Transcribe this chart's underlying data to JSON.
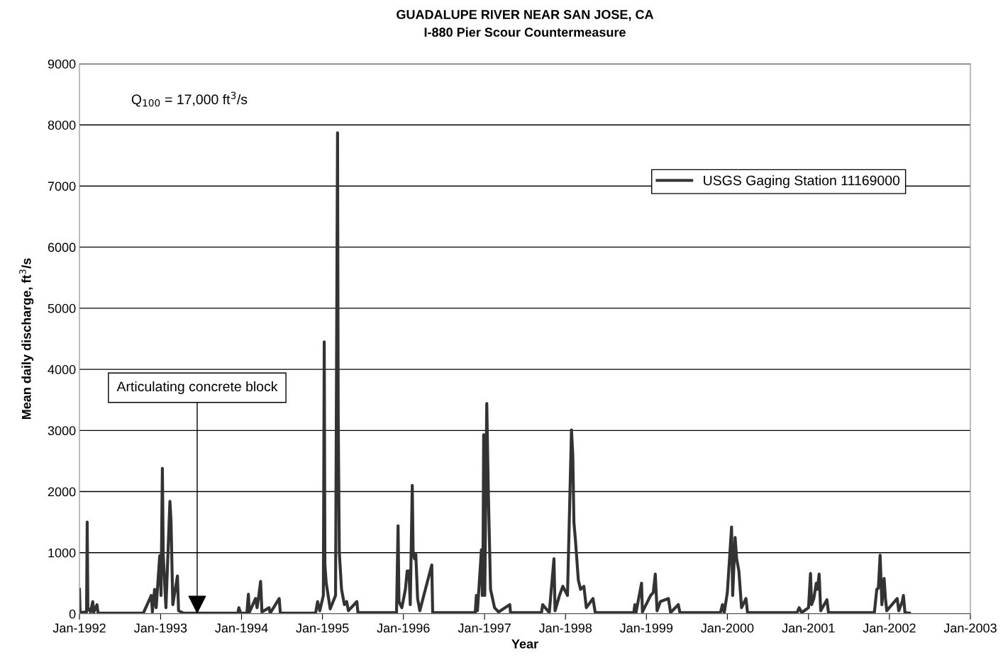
{
  "chart_data": {
    "type": "line",
    "title": "GUADALUPE RIVER NEAR SAN JOSE, CA",
    "subtitle": "I-880 Pier Scour Countermeasure",
    "xlabel": "Year",
    "ylabel": "Mean daily discharge, ft$^{3}$/s",
    "annotations": [
      "Q$_{100}$ = 17,000 ft$^{3}$/s",
      {
        "text": "Articulating concrete block",
        "x": "1993-06-15",
        "y": 0
      }
    ],
    "x": [
      "1992-01-01",
      "1992-01-04",
      "1992-02-02",
      "1992-02-05",
      "1992-02-08",
      "1992-02-20",
      "1992-03-01",
      "1992-03-05",
      "1992-03-20",
      "1992-03-25",
      "1992-10-15",
      "1992-11-20",
      "1992-11-25",
      "1992-12-05",
      "1992-12-12",
      "1992-12-28",
      "1993-01-03",
      "1993-01-09",
      "1993-01-13",
      "1993-01-18",
      "1993-01-25",
      "1993-02-12",
      "1993-02-17",
      "1993-02-25",
      "1993-03-18",
      "1993-03-23",
      "1993-04-15",
      "1993-12-15",
      "1993-12-20",
      "1993-12-28",
      "1994-01-25",
      "1994-02-01",
      "1994-02-05",
      "1994-03-05",
      "1994-03-12",
      "1994-03-20",
      "1994-03-28",
      "1994-04-03",
      "1994-05-05",
      "1994-05-10",
      "1994-06-20",
      "1994-06-25",
      "1994-12-01",
      "1994-12-10",
      "1994-12-20",
      "1995-01-05",
      "1995-01-09",
      "1995-01-12",
      "1995-01-18",
      "1995-02-05",
      "1995-03-01",
      "1995-03-10",
      "1995-03-13",
      "1995-03-18",
      "1995-03-28",
      "1995-04-10",
      "1995-04-20",
      "1995-04-28",
      "1995-06-05",
      "1995-06-10",
      "1995-12-01",
      "1995-12-08",
      "1995-12-12",
      "1995-12-25",
      "1996-01-10",
      "1996-01-18",
      "1996-01-26",
      "1996-02-01",
      "1996-02-10",
      "1996-02-14",
      "1996-02-20",
      "1996-02-26",
      "1996-03-05",
      "1996-03-15",
      "1996-05-08",
      "1996-05-12",
      "1996-11-20",
      "1996-11-25",
      "1996-11-30",
      "1996-12-18",
      "1996-12-22",
      "1996-12-25",
      "1996-12-28",
      "1997-01-02",
      "1997-01-08",
      "1997-01-11",
      "1997-01-18",
      "1997-01-28",
      "1997-02-15",
      "1997-03-05",
      "1997-04-25",
      "1997-04-28",
      "1997-09-15",
      "1997-09-20",
      "1997-10-20",
      "1997-11-10",
      "1997-11-15",
      "1997-12-05",
      "1997-12-20",
      "1998-01-10",
      "1998-01-28",
      "1998-02-03",
      "1998-02-08",
      "1998-02-15",
      "1998-02-28",
      "1998-03-10",
      "1998-03-25",
      "1998-04-05",
      "1998-05-05",
      "1998-05-15",
      "1998-11-05",
      "1998-11-10",
      "1998-11-15",
      "1998-12-10",
      "1998-12-14",
      "1999-01-20",
      "1999-02-01",
      "1999-02-10",
      "1999-02-18",
      "1999-03-05",
      "1999-04-10",
      "1999-04-20",
      "1999-05-25",
      "1999-06-01",
      "1999-12-01",
      "1999-12-10",
      "1999-12-18",
      "2000-01-01",
      "2000-01-20",
      "2000-01-25",
      "2000-02-05",
      "2000-02-12",
      "2000-02-22",
      "2000-03-05",
      "2000-03-25",
      "2000-04-01",
      "2000-11-10",
      "2000-11-20",
      "2000-12-01",
      "2001-01-01",
      "2001-01-10",
      "2001-01-15",
      "2001-01-25",
      "2001-02-05",
      "2001-02-10",
      "2001-02-18",
      "2001-02-25",
      "2001-03-25",
      "2001-04-01",
      "2001-10-25",
      "2001-11-05",
      "2001-11-12",
      "2001-11-20",
      "2001-11-28",
      "2001-12-08",
      "2001-12-14",
      "2001-12-20",
      "2002-02-05",
      "2002-02-12",
      "2002-02-28",
      "2002-03-05",
      "2002-03-12",
      "2002-04-01"
    ],
    "series": [
      {
        "name": "USGS Gaging Station 11169000",
        "color": "#333333",
        "values": [
          400,
          20,
          30,
          1500,
          100,
          30,
          200,
          20,
          150,
          10,
          10,
          300,
          30,
          400,
          100,
          950,
          300,
          2380,
          950,
          600,
          100,
          1840,
          1520,
          150,
          620,
          50,
          10,
          10,
          100,
          10,
          10,
          320,
          20,
          250,
          100,
          300,
          530,
          30,
          100,
          10,
          250,
          10,
          10,
          200,
          50,
          300,
          4450,
          800,
          500,
          80,
          300,
          7870,
          3230,
          1000,
          400,
          150,
          200,
          50,
          200,
          20,
          20,
          1440,
          200,
          100,
          400,
          700,
          700,
          150,
          2100,
          1000,
          900,
          970,
          250,
          50,
          800,
          20,
          20,
          300,
          50,
          1050,
          300,
          800,
          2930,
          300,
          2450,
          3440,
          2000,
          400,
          100,
          30,
          150,
          20,
          20,
          150,
          20,
          900,
          50,
          300,
          450,
          300,
          3010,
          2600,
          1500,
          1200,
          550,
          400,
          450,
          100,
          250,
          20,
          20,
          150,
          20,
          500,
          30,
          300,
          350,
          650,
          50,
          200,
          250,
          20,
          150,
          20,
          20,
          150,
          20,
          350,
          1420,
          300,
          1250,
          900,
          700,
          100,
          250,
          20,
          20,
          100,
          20,
          100,
          660,
          150,
          250,
          500,
          400,
          650,
          50,
          230,
          20,
          20,
          400,
          420,
          960,
          150,
          580,
          250,
          50,
          250,
          50,
          200,
          300,
          20,
          10
        ]
      }
    ],
    "xlim": [
      "1992-01-01",
      "2003-01-01"
    ],
    "xticks": [
      {
        "value": "1992-01-01",
        "label": "Jan-1992"
      },
      {
        "value": "1993-01-01",
        "label": "Jan-1993"
      },
      {
        "value": "1994-01-01",
        "label": "Jan-1994"
      },
      {
        "value": "1995-01-01",
        "label": "Jan-1995"
      },
      {
        "value": "1996-01-01",
        "label": "Jan-1996"
      },
      {
        "value": "1997-01-01",
        "label": "Jan-1997"
      },
      {
        "value": "1998-01-01",
        "label": "Jan-1998"
      },
      {
        "value": "1999-01-01",
        "label": "Jan-1999"
      },
      {
        "value": "2000-01-01",
        "label": "Jan-2000"
      },
      {
        "value": "2001-01-01",
        "label": "Jan-2001"
      },
      {
        "value": "2002-01-01",
        "label": "Jan-2002"
      },
      {
        "value": "2003-01-01",
        "label": "Jan-2003"
      }
    ],
    "ylim": [
      0,
      9000
    ],
    "yticks": [
      0,
      1000,
      2000,
      3000,
      4000,
      5000,
      6000,
      7000,
      8000,
      9000
    ],
    "grid": "y",
    "legend": "top right",
    "marker": "none",
    "line_style": "solid"
  }
}
